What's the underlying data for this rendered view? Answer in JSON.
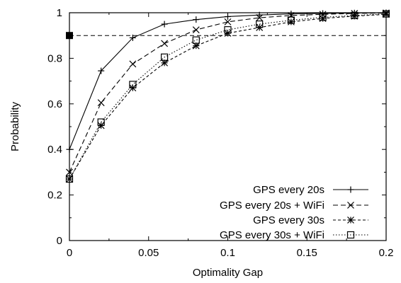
{
  "chart_data": {
    "type": "line",
    "title": "",
    "xlabel": "Optimality Gap",
    "ylabel": "Probability",
    "xlim": [
      0,
      0.2
    ],
    "ylim": [
      0,
      1
    ],
    "x_ticks": [
      "0",
      "0.05",
      "0.1",
      "0.15",
      "0.2"
    ],
    "y_ticks": [
      "0",
      "0.2",
      "0.4",
      "0.6",
      "0.8",
      "1"
    ],
    "grid": false,
    "legend_position": "bottom-right",
    "reference_line": {
      "y": 0.9,
      "style": "dashed"
    },
    "marked_point": {
      "x": 0,
      "y": 0.9
    },
    "series": [
      {
        "name": "GPS every 20s",
        "marker": "plus",
        "line_style": "solid",
        "x": [
          0,
          0.02,
          0.04,
          0.06,
          0.08,
          0.1,
          0.12,
          0.14,
          0.16,
          0.18,
          0.2
        ],
        "y": [
          0.4,
          0.745,
          0.89,
          0.95,
          0.97,
          0.983,
          0.99,
          0.995,
          0.997,
          0.999,
          1.0
        ]
      },
      {
        "name": "GPS every 20s + WiFi",
        "marker": "cross",
        "line_style": "dashed",
        "x": [
          0,
          0.02,
          0.04,
          0.06,
          0.08,
          0.1,
          0.12,
          0.14,
          0.16,
          0.18,
          0.2
        ],
        "y": [
          0.3,
          0.605,
          0.775,
          0.865,
          0.925,
          0.96,
          0.978,
          0.988,
          0.993,
          0.997,
          0.999
        ]
      },
      {
        "name": "GPS every 30s",
        "marker": "asterisk",
        "line_style": "short-dashed",
        "x": [
          0,
          0.02,
          0.04,
          0.06,
          0.08,
          0.1,
          0.12,
          0.14,
          0.16,
          0.18,
          0.2
        ],
        "y": [
          0.27,
          0.505,
          0.67,
          0.78,
          0.855,
          0.91,
          0.935,
          0.96,
          0.975,
          0.985,
          0.993
        ]
      },
      {
        "name": "GPS every 30s + WiFi",
        "marker": "square",
        "line_style": "dotted",
        "x": [
          0,
          0.02,
          0.04,
          0.06,
          0.08,
          0.1,
          0.12,
          0.14,
          0.16,
          0.18,
          0.2
        ],
        "y": [
          0.27,
          0.52,
          0.685,
          0.805,
          0.88,
          0.925,
          0.95,
          0.967,
          0.98,
          0.988,
          0.995
        ]
      }
    ]
  }
}
